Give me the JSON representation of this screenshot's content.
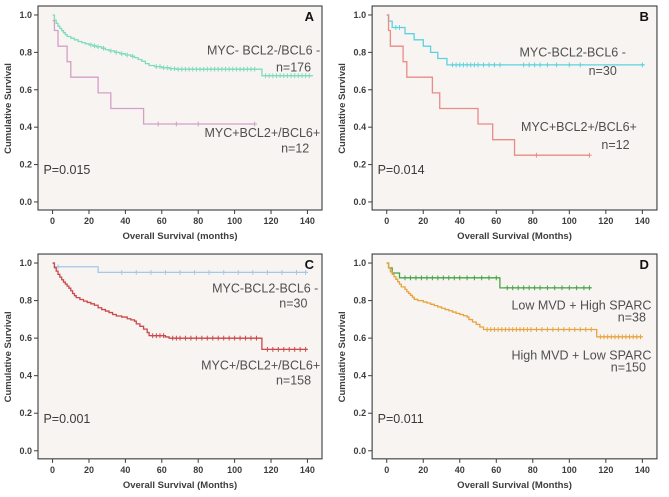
{
  "figure": {
    "background": "#ffffff",
    "panel_background": "#f7f4f2",
    "border_color": "#3c3c3c",
    "text_color": "#3d3d3d"
  },
  "chart_data": [
    {
      "type": "line",
      "subtype": "kaplan-meier-step",
      "panel_letter": "A",
      "xlabel": "Overall Survival (months)",
      "ylabel": "Cumulative Survival",
      "xlim": [
        -8,
        148
      ],
      "ylim": [
        -0.043,
        1.048
      ],
      "xticks": [
        0,
        20,
        40,
        60,
        80,
        100,
        120,
        140
      ],
      "yticks": [
        {
          "v": 0.0,
          "label": "0.0"
        },
        {
          "v": 0.2,
          "label": "0.2"
        },
        {
          "v": 0.4,
          "label": "0.4"
        },
        {
          "v": 0.6,
          "label": "0.6"
        },
        {
          "v": 0.8,
          "label": "0.8"
        },
        {
          "v": 1.0,
          "label": "1.0"
        }
      ],
      "p_value_label": "P=0.015",
      "p_pos": [
        -5,
        0.17
      ],
      "series": [
        {
          "name": "MYC- BCL2-/BCL6 -",
          "n_label": "n=176",
          "color": "#7EDCBC",
          "steps": [
            [
              0,
              1.0
            ],
            [
              1,
              0.972
            ],
            [
              2,
              0.955
            ],
            [
              3,
              0.94
            ],
            [
              4,
              0.928
            ],
            [
              5,
              0.916
            ],
            [
              6,
              0.905
            ],
            [
              7,
              0.895
            ],
            [
              8,
              0.885
            ],
            [
              10,
              0.876
            ],
            [
              12,
              0.867
            ],
            [
              14,
              0.858
            ],
            [
              16,
              0.852
            ],
            [
              18,
              0.846
            ],
            [
              20,
              0.84
            ],
            [
              22,
              0.835
            ],
            [
              24,
              0.83
            ],
            [
              27,
              0.822
            ],
            [
              29,
              0.815
            ],
            [
              31,
              0.808
            ],
            [
              34,
              0.8
            ],
            [
              37,
              0.793
            ],
            [
              40,
              0.786
            ],
            [
              43,
              0.779
            ],
            [
              45,
              0.772
            ],
            [
              47,
              0.762
            ],
            [
              49,
              0.752
            ],
            [
              51,
              0.74
            ],
            [
              53,
              0.73
            ],
            [
              56,
              0.724
            ],
            [
              60,
              0.718
            ],
            [
              64,
              0.713
            ],
            [
              68,
              0.71
            ],
            [
              115,
              0.675
            ]
          ],
          "end_x": 143,
          "censors": [
            21,
            23,
            25,
            28,
            32,
            35,
            38,
            41,
            44,
            57,
            59,
            61,
            63,
            65,
            67,
            69,
            71,
            73,
            75,
            77,
            79,
            81,
            83,
            85,
            87,
            89,
            91,
            93,
            95,
            97,
            99,
            101,
            103,
            105,
            107,
            109,
            111,
            117,
            119,
            121,
            123,
            125,
            127,
            129,
            131,
            133,
            135,
            137,
            139,
            141
          ],
          "label_pos": [
            147,
            0.81
          ],
          "n_pos": [
            142,
            0.72
          ]
        },
        {
          "name": "MYC+BCL2+/BCL6+",
          "n_label": "n=12",
          "color": "#D49FC8",
          "steps": [
            [
              0,
              0.97
            ],
            [
              1,
              0.917
            ],
            [
              3,
              0.833
            ],
            [
              8,
              0.75
            ],
            [
              10,
              0.667
            ],
            [
              25,
              0.583
            ],
            [
              32,
              0.5
            ],
            [
              50,
              0.417
            ]
          ],
          "end_x": 111,
          "censors": [
            58,
            68,
            80,
            111
          ],
          "label_pos": [
            147,
            0.37
          ],
          "n_pos": [
            141,
            0.285
          ]
        }
      ]
    },
    {
      "type": "line",
      "subtype": "kaplan-meier-step",
      "panel_letter": "B",
      "xlabel": "Overall  Survival (Months)",
      "ylabel": "Cumulative Survival",
      "xlim": [
        -8,
        148
      ],
      "ylim": [
        -0.043,
        1.048
      ],
      "xticks": [
        0,
        20,
        40,
        60,
        80,
        100,
        120,
        140
      ],
      "yticks": [
        {
          "v": 0.0,
          "label": "0.0"
        },
        {
          "v": 0.2,
          "label": "0.2"
        },
        {
          "v": 0.4,
          "label": "0.4"
        },
        {
          "v": 0.6,
          "label": "0.6"
        },
        {
          "v": 0.8,
          "label": "0.8"
        },
        {
          "v": 1.0,
          "label": "1.0"
        }
      ],
      "p_value_label": "P=0.014",
      "p_pos": [
        -5,
        0.17
      ],
      "series": [
        {
          "name": "MYC-BCL2-BCL6 -",
          "n_label": "n=30",
          "color": "#5BD3DF",
          "steps": [
            [
              0,
              1.0
            ],
            [
              1,
              0.967
            ],
            [
              3,
              0.933
            ],
            [
              10,
              0.9
            ],
            [
              15,
              0.867
            ],
            [
              20,
              0.833
            ],
            [
              24,
              0.8
            ],
            [
              28,
              0.767
            ],
            [
              33,
              0.733
            ]
          ],
          "end_x": 141,
          "censors": [
            5,
            7,
            36,
            38,
            40,
            42,
            44,
            46,
            48,
            50,
            53,
            56,
            59,
            62,
            75,
            78,
            81,
            84,
            88,
            93,
            100,
            106,
            140
          ],
          "label_pos": [
            131,
            0.8
          ],
          "n_pos": [
            126,
            0.7
          ]
        },
        {
          "name": "MYC+BCL2+/BCL6+",
          "n_label": "n=12",
          "color": "#E98C85",
          "steps": [
            [
              0,
              1.0
            ],
            [
              1,
              0.917
            ],
            [
              2,
              0.833
            ],
            [
              9,
              0.75
            ],
            [
              11,
              0.667
            ],
            [
              25,
              0.583
            ],
            [
              29,
              0.5
            ],
            [
              50,
              0.417
            ],
            [
              58,
              0.333
            ],
            [
              70,
              0.25
            ]
          ],
          "end_x": 111,
          "censors": [
            82,
            111
          ],
          "label_pos": [
            137,
            0.4
          ],
          "n_pos": [
            133,
            0.305
          ]
        }
      ]
    },
    {
      "type": "line",
      "subtype": "kaplan-meier-step",
      "panel_letter": "C",
      "xlabel": "Overall Survival (Months)",
      "ylabel": "Cumulative Survival",
      "xlim": [
        -8,
        148
      ],
      "ylim": [
        -0.043,
        1.048
      ],
      "xticks": [
        0,
        20,
        40,
        60,
        80,
        100,
        120,
        140
      ],
      "yticks": [
        {
          "v": 0.0,
          "label": "0.0"
        },
        {
          "v": 0.2,
          "label": "0.2"
        },
        {
          "v": 0.4,
          "label": "0.4"
        },
        {
          "v": 0.6,
          "label": "0.6"
        },
        {
          "v": 0.8,
          "label": "0.8"
        },
        {
          "v": 1.0,
          "label": "1.0"
        }
      ],
      "p_value_label": "P=0.001",
      "p_pos": [
        -5,
        0.17
      ],
      "series": [
        {
          "name": "MYC-BCL2-BCL6 -",
          "n_label": "n=30",
          "color": "#A8C6E6",
          "steps": [
            [
              0,
              1.0
            ],
            [
              1,
              0.98
            ],
            [
              25,
              0.95
            ]
          ],
          "end_x": 140,
          "censors": [
            3,
            38,
            46,
            54,
            62,
            70,
            78,
            86,
            94,
            102,
            110,
            118,
            126,
            134,
            139
          ],
          "label_pos": [
            146,
            0.865
          ],
          "n_pos": [
            140,
            0.785
          ]
        },
        {
          "name": "MYC+/BCL2+/BCL6+",
          "n_label": "n=158",
          "color": "#CB4848",
          "steps": [
            [
              0,
              1.0
            ],
            [
              1,
              0.975
            ],
            [
              2,
              0.957
            ],
            [
              3,
              0.94
            ],
            [
              4,
              0.925
            ],
            [
              5,
              0.911
            ],
            [
              6,
              0.899
            ],
            [
              7,
              0.888
            ],
            [
              8,
              0.877
            ],
            [
              9,
              0.866
            ],
            [
              10,
              0.852
            ],
            [
              11,
              0.838
            ],
            [
              12,
              0.826
            ],
            [
              13,
              0.816
            ],
            [
              15,
              0.806
            ],
            [
              17,
              0.797
            ],
            [
              19,
              0.79
            ],
            [
              21,
              0.783
            ],
            [
              23,
              0.775
            ],
            [
              25,
              0.762
            ],
            [
              27,
              0.752
            ],
            [
              29,
              0.744
            ],
            [
              31,
              0.736
            ],
            [
              33,
              0.726
            ],
            [
              35,
              0.718
            ],
            [
              38,
              0.712
            ],
            [
              41,
              0.703
            ],
            [
              43,
              0.697
            ],
            [
              45,
              0.69
            ],
            [
              46,
              0.676
            ],
            [
              48,
              0.663
            ],
            [
              50,
              0.648
            ],
            [
              52,
              0.63
            ],
            [
              53,
              0.613
            ],
            [
              62,
              0.606
            ],
            [
              64,
              0.6
            ],
            [
              115,
              0.54
            ]
          ],
          "end_x": 140,
          "censors": [
            55,
            57,
            59,
            61,
            66,
            68,
            70,
            73,
            76,
            79,
            82,
            85,
            88,
            91,
            94,
            97,
            100,
            103,
            106,
            109,
            112,
            118,
            121,
            124,
            127,
            130,
            133,
            136,
            139
          ],
          "label_pos": [
            147,
            0.455
          ],
          "n_pos": [
            142,
            0.375
          ]
        }
      ]
    },
    {
      "type": "line",
      "subtype": "kaplan-meier-step",
      "panel_letter": "D",
      "xlabel": "Overall Survival (Months)",
      "ylabel": "Cumulative Survival",
      "xlim": [
        -8,
        148
      ],
      "ylim": [
        -0.043,
        1.048
      ],
      "xticks": [
        0,
        20,
        40,
        60,
        80,
        100,
        120,
        140
      ],
      "yticks": [
        {
          "v": 0.0,
          "label": "0.0"
        },
        {
          "v": 0.2,
          "label": "0.2"
        },
        {
          "v": 0.4,
          "label": "0.4"
        },
        {
          "v": 0.6,
          "label": "0.6"
        },
        {
          "v": 0.8,
          "label": "0.8"
        },
        {
          "v": 1.0,
          "label": "1.0"
        }
      ],
      "p_value_label": "P=0.011",
      "p_pos": [
        -5,
        0.17
      ],
      "series": [
        {
          "name": "Low MVD + High SPARC",
          "n_label": "n=38",
          "color": "#47A447",
          "steps": [
            [
              0,
              1.0
            ],
            [
              1,
              0.974
            ],
            [
              3,
              0.947
            ],
            [
              7,
              0.921
            ],
            [
              62,
              0.868
            ]
          ],
          "end_x": 112,
          "censors": [
            10,
            13,
            16,
            19,
            22,
            25,
            28,
            31,
            34,
            37,
            40,
            44,
            48,
            52,
            56,
            60,
            66,
            69,
            72,
            75,
            78,
            81,
            84,
            88,
            92,
            96,
            100,
            104,
            108,
            111
          ],
          "label_pos": [
            145,
            0.775
          ],
          "n_pos": [
            142,
            0.71
          ]
        },
        {
          "name": "High MVD + Low SPARC",
          "n_label": "n=150",
          "color": "#E8A33C",
          "steps": [
            [
              0,
              1.0
            ],
            [
              1,
              0.973
            ],
            [
              2,
              0.953
            ],
            [
              3,
              0.94
            ],
            [
              4,
              0.927
            ],
            [
              5,
              0.913
            ],
            [
              6,
              0.9
            ],
            [
              7,
              0.887
            ],
            [
              8,
              0.873
            ],
            [
              10,
              0.86
            ],
            [
              11,
              0.847
            ],
            [
              12,
              0.838
            ],
            [
              13,
              0.828
            ],
            [
              14,
              0.818
            ],
            [
              15,
              0.807
            ],
            [
              17,
              0.8
            ],
            [
              20,
              0.793
            ],
            [
              22,
              0.787
            ],
            [
              24,
              0.78
            ],
            [
              26,
              0.773
            ],
            [
              28,
              0.766
            ],
            [
              30,
              0.759
            ],
            [
              32,
              0.752
            ],
            [
              34,
              0.746
            ],
            [
              36,
              0.739
            ],
            [
              38,
              0.732
            ],
            [
              40,
              0.726
            ],
            [
              42,
              0.719
            ],
            [
              44,
              0.712
            ],
            [
              45,
              0.699
            ],
            [
              47,
              0.686
            ],
            [
              49,
              0.673
            ],
            [
              51,
              0.659
            ],
            [
              53,
              0.646
            ],
            [
              115,
              0.607
            ]
          ],
          "end_x": 140,
          "censors": [
            55,
            57,
            59,
            61,
            63,
            65,
            67,
            69,
            71,
            73,
            75,
            77,
            79,
            82,
            85,
            88,
            91,
            94,
            97,
            100,
            103,
            106,
            109,
            112,
            117,
            119,
            121,
            123,
            125,
            127,
            129,
            131,
            133,
            135,
            137,
            139
          ],
          "label_pos": [
            145,
            0.508
          ],
          "n_pos": [
            142,
            0.444
          ]
        }
      ]
    }
  ]
}
